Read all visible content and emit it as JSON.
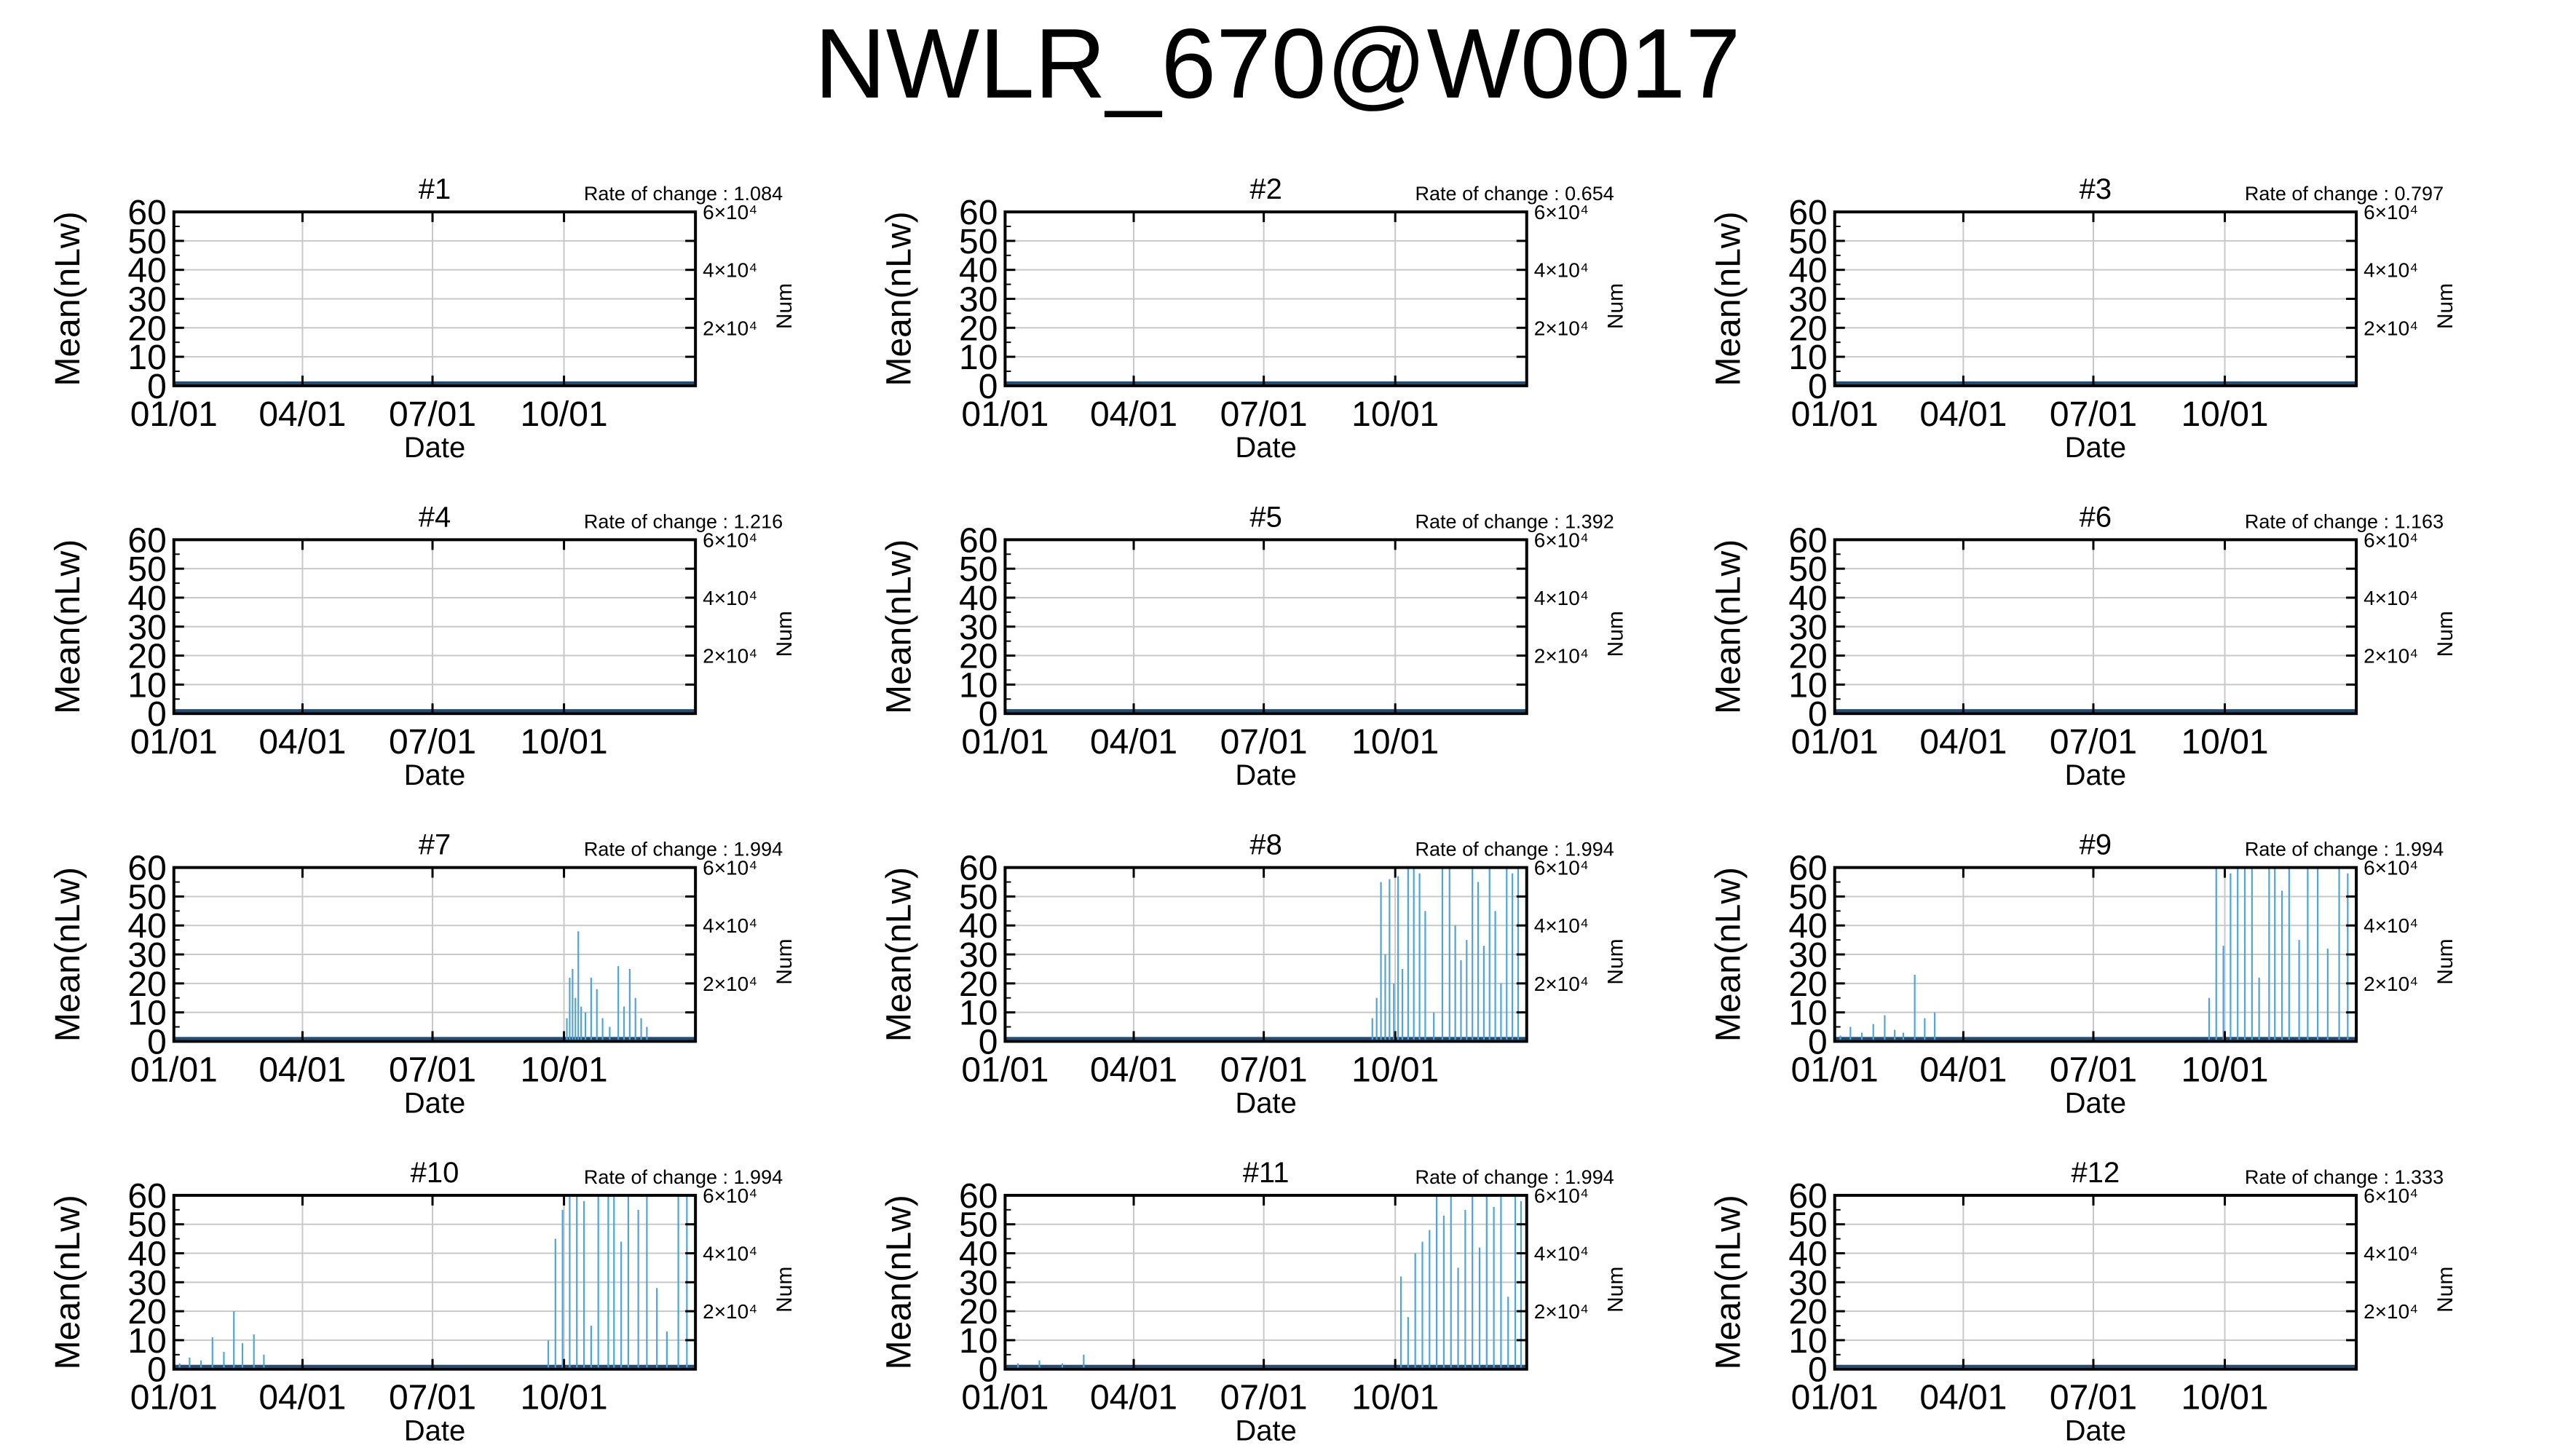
{
  "title": "NWLR_670@W0017",
  "chart_data": [
    {
      "type": "line",
      "title": "#1",
      "rate_label": "Rate of change : 1.084",
      "ylabel": "Mean(nLw)",
      "xlabel": "Date",
      "y2label": "Num",
      "ylim": [
        0,
        60
      ],
      "y_ticks": [
        0,
        10,
        20,
        30,
        40,
        50,
        60
      ],
      "y2_ticks": [
        {
          "value": 20000,
          "label": "2×10⁴"
        },
        {
          "value": 40000,
          "label": "4×10⁴"
        },
        {
          "value": 60000,
          "label": "6×10⁴"
        }
      ],
      "x_ticks": [
        "01/01",
        "04/01",
        "07/01",
        "10/01"
      ],
      "grid": true,
      "series": []
    },
    {
      "type": "line",
      "title": "#2",
      "rate_label": "Rate of change : 0.654",
      "ylabel": "Mean(nLw)",
      "xlabel": "Date",
      "y2label": "Num",
      "ylim": [
        0,
        60
      ],
      "y_ticks": [
        0,
        10,
        20,
        30,
        40,
        50,
        60
      ],
      "y2_ticks": [
        {
          "value": 20000,
          "label": "2×10⁴"
        },
        {
          "value": 40000,
          "label": "4×10⁴"
        },
        {
          "value": 60000,
          "label": "6×10⁴"
        }
      ],
      "x_ticks": [
        "01/01",
        "04/01",
        "07/01",
        "10/01"
      ],
      "grid": true,
      "series": []
    },
    {
      "type": "line",
      "title": "#3",
      "rate_label": "Rate of change : 0.797",
      "ylabel": "Mean(nLw)",
      "xlabel": "Date",
      "y2label": "Num",
      "ylim": [
        0,
        60
      ],
      "y_ticks": [
        0,
        10,
        20,
        30,
        40,
        50,
        60
      ],
      "y2_ticks": [
        {
          "value": 20000,
          "label": "2×10⁴"
        },
        {
          "value": 40000,
          "label": "4×10⁴"
        },
        {
          "value": 60000,
          "label": "6×10⁴"
        }
      ],
      "x_ticks": [
        "01/01",
        "04/01",
        "07/01",
        "10/01"
      ],
      "grid": true,
      "series": []
    },
    {
      "type": "line",
      "title": "#4",
      "rate_label": "Rate of change : 1.216",
      "ylabel": "Mean(nLw)",
      "xlabel": "Date",
      "y2label": "Num",
      "ylim": [
        0,
        60
      ],
      "y_ticks": [
        0,
        10,
        20,
        30,
        40,
        50,
        60
      ],
      "y2_ticks": [
        {
          "value": 20000,
          "label": "2×10⁴"
        },
        {
          "value": 40000,
          "label": "4×10⁴"
        },
        {
          "value": 60000,
          "label": "6×10⁴"
        }
      ],
      "x_ticks": [
        "01/01",
        "04/01",
        "07/01",
        "10/01"
      ],
      "grid": true,
      "series": []
    },
    {
      "type": "line",
      "title": "#5",
      "rate_label": "Rate of change : 1.392",
      "ylabel": "Mean(nLw)",
      "xlabel": "Date",
      "y2label": "Num",
      "ylim": [
        0,
        60
      ],
      "y_ticks": [
        0,
        10,
        20,
        30,
        40,
        50,
        60
      ],
      "y2_ticks": [
        {
          "value": 20000,
          "label": "2×10⁴"
        },
        {
          "value": 40000,
          "label": "4×10⁴"
        },
        {
          "value": 60000,
          "label": "6×10⁴"
        }
      ],
      "x_ticks": [
        "01/01",
        "04/01",
        "07/01",
        "10/01"
      ],
      "grid": true,
      "series": []
    },
    {
      "type": "line",
      "title": "#6",
      "rate_label": "Rate of change : 1.163",
      "ylabel": "Mean(nLw)",
      "xlabel": "Date",
      "y2label": "Num",
      "ylim": [
        0,
        60
      ],
      "y_ticks": [
        0,
        10,
        20,
        30,
        40,
        50,
        60
      ],
      "y2_ticks": [
        {
          "value": 20000,
          "label": "2×10⁴"
        },
        {
          "value": 40000,
          "label": "4×10⁴"
        },
        {
          "value": 60000,
          "label": "6×10⁴"
        }
      ],
      "x_ticks": [
        "01/01",
        "04/01",
        "07/01",
        "10/01"
      ],
      "grid": true,
      "series": []
    },
    {
      "type": "line",
      "title": "#7",
      "rate_label": "Rate of change : 1.994",
      "ylabel": "Mean(nLw)",
      "xlabel": "Date",
      "y2label": "Num",
      "ylim": [
        0,
        60
      ],
      "y_ticks": [
        0,
        10,
        20,
        30,
        40,
        50,
        60
      ],
      "y2_ticks": [
        {
          "value": 20000,
          "label": "2×10⁴"
        },
        {
          "value": 40000,
          "label": "4×10⁴"
        },
        {
          "value": 60000,
          "label": "6×10⁴"
        }
      ],
      "x_ticks": [
        "01/01",
        "04/01",
        "07/01",
        "10/01"
      ],
      "grid": true,
      "series": [
        {
          "color": "#4da6d8",
          "x": [
            "10/03",
            "10/05",
            "10/07",
            "10/09",
            "10/11",
            "10/13",
            "10/16",
            "10/20",
            "10/24",
            "10/28",
            "11/02",
            "11/08",
            "11/12",
            "11/16",
            "11/20",
            "11/24",
            "11/28"
          ],
          "values": [
            8,
            22,
            25,
            15,
            38,
            12,
            10,
            22,
            18,
            8,
            5,
            26,
            12,
            25,
            15,
            8,
            5
          ]
        }
      ]
    },
    {
      "type": "line",
      "title": "#8",
      "rate_label": "Rate of change : 1.994",
      "ylabel": "Mean(nLw)",
      "xlabel": "Date",
      "y2label": "Num",
      "ylim": [
        0,
        60
      ],
      "y_ticks": [
        0,
        10,
        20,
        30,
        40,
        50,
        60
      ],
      "y2_ticks": [
        {
          "value": 20000,
          "label": "2×10⁴"
        },
        {
          "value": 40000,
          "label": "4×10⁴"
        },
        {
          "value": 60000,
          "label": "6×10⁴"
        }
      ],
      "x_ticks": [
        "01/01",
        "04/01",
        "07/01",
        "10/01"
      ],
      "grid": true,
      "series": [
        {
          "color": "#4da6d8",
          "x": [
            "09/15",
            "09/18",
            "09/21",
            "09/24",
            "09/27",
            "09/30",
            "10/03",
            "10/06",
            "10/10",
            "10/14",
            "10/18",
            "10/22",
            "10/28",
            "11/03",
            "11/08",
            "11/12",
            "11/16",
            "11/20",
            "11/24",
            "11/28",
            "12/02",
            "12/06",
            "12/10",
            "12/14",
            "12/18",
            "12/22",
            "12/26"
          ],
          "values": [
            8,
            15,
            55,
            30,
            56,
            20,
            57,
            25,
            60,
            60,
            58,
            45,
            10,
            60,
            60,
            40,
            28,
            35,
            60,
            55,
            33,
            60,
            45,
            20,
            60,
            58,
            60
          ]
        }
      ]
    },
    {
      "type": "line",
      "title": "#9",
      "rate_label": "Rate of change : 1.994",
      "ylabel": "Mean(nLw)",
      "xlabel": "Date",
      "y2label": "Num",
      "ylim": [
        0,
        60
      ],
      "y_ticks": [
        0,
        10,
        20,
        30,
        40,
        50,
        60
      ],
      "y2_ticks": [
        {
          "value": 20000,
          "label": "2×10⁴"
        },
        {
          "value": 40000,
          "label": "4×10⁴"
        },
        {
          "value": 60000,
          "label": "6×10⁴"
        }
      ],
      "x_ticks": [
        "01/01",
        "04/01",
        "07/01",
        "10/01"
      ],
      "grid": true,
      "series": [
        {
          "color": "#4da6d8",
          "x": [
            "01/05",
            "01/12",
            "01/20",
            "01/28",
            "02/05",
            "02/12",
            "02/18",
            "02/26",
            "03/05",
            "03/12",
            "09/20",
            "09/25",
            "09/30",
            "10/05",
            "10/10",
            "10/15",
            "10/20",
            "10/25",
            "11/01",
            "11/05",
            "11/10",
            "11/15",
            "11/22",
            "11/28",
            "12/05",
            "12/12",
            "12/20",
            "12/26"
          ],
          "values": [
            2,
            5,
            3,
            6,
            9,
            4,
            3,
            23,
            8,
            10,
            15,
            60,
            33,
            58,
            60,
            60,
            60,
            22,
            60,
            60,
            52,
            60,
            35,
            60,
            60,
            32,
            60,
            58
          ]
        }
      ]
    },
    {
      "type": "line",
      "title": "#10",
      "rate_label": "Rate of change : 1.994",
      "ylabel": "Mean(nLw)",
      "xlabel": "Date",
      "y2label": "Num",
      "ylim": [
        0,
        60
      ],
      "y_ticks": [
        0,
        10,
        20,
        30,
        40,
        50,
        60
      ],
      "y2_ticks": [
        {
          "value": 20000,
          "label": "2×10⁴"
        },
        {
          "value": 40000,
          "label": "4×10⁴"
        },
        {
          "value": 60000,
          "label": "6×10⁴"
        }
      ],
      "x_ticks": [
        "01/01",
        "04/01",
        "07/01",
        "10/01"
      ],
      "grid": true,
      "series": [
        {
          "color": "#4da6d8",
          "x": [
            "01/05",
            "01/12",
            "01/20",
            "01/28",
            "02/05",
            "02/12",
            "02/18",
            "02/26",
            "03/05",
            "09/20",
            "09/25",
            "09/30",
            "10/05",
            "10/10",
            "10/15",
            "10/20",
            "10/25",
            "11/01",
            "11/05",
            "11/10",
            "11/15",
            "11/22",
            "11/28",
            "12/05",
            "12/12",
            "12/20",
            "12/26"
          ],
          "values": [
            2,
            4,
            3,
            11,
            6,
            20,
            9,
            12,
            5,
            10,
            45,
            55,
            60,
            60,
            58,
            15,
            60,
            60,
            60,
            44,
            60,
            55,
            60,
            28,
            13,
            60,
            60
          ]
        }
      ]
    },
    {
      "type": "line",
      "title": "#11",
      "rate_label": "Rate of change : 1.994",
      "ylabel": "Mean(nLw)",
      "xlabel": "Date",
      "y2label": "Num",
      "ylim": [
        0,
        60
      ],
      "y_ticks": [
        0,
        10,
        20,
        30,
        40,
        50,
        60
      ],
      "y2_ticks": [
        {
          "value": 20000,
          "label": "2×10⁴"
        },
        {
          "value": 40000,
          "label": "4×10⁴"
        },
        {
          "value": 60000,
          "label": "6×10⁴"
        }
      ],
      "x_ticks": [
        "01/01",
        "04/01",
        "07/01",
        "10/01"
      ],
      "grid": true,
      "series": [
        {
          "color": "#4da6d8",
          "x": [
            "01/10",
            "01/25",
            "02/10",
            "02/25",
            "10/05",
            "10/10",
            "10/15",
            "10/20",
            "10/25",
            "10/30",
            "11/04",
            "11/09",
            "11/14",
            "11/19",
            "11/24",
            "11/29",
            "12/04",
            "12/09",
            "12/14",
            "12/19",
            "12/24",
            "12/28"
          ],
          "values": [
            2,
            3,
            2,
            5,
            32,
            18,
            40,
            44,
            48,
            60,
            53,
            60,
            35,
            55,
            60,
            42,
            60,
            56,
            60,
            25,
            60,
            58
          ]
        }
      ]
    },
    {
      "type": "line",
      "title": "#12",
      "rate_label": "Rate of change : 1.333",
      "ylabel": "Mean(nLw)",
      "xlabel": "Date",
      "y2label": "Num",
      "ylim": [
        0,
        60
      ],
      "y_ticks": [
        0,
        10,
        20,
        30,
        40,
        50,
        60
      ],
      "y2_ticks": [
        {
          "value": 20000,
          "label": "2×10⁴"
        },
        {
          "value": 40000,
          "label": "4×10⁴"
        },
        {
          "value": 60000,
          "label": "6×10⁴"
        }
      ],
      "x_ticks": [
        "01/01",
        "04/01",
        "07/01",
        "10/01"
      ],
      "grid": true,
      "series": []
    }
  ]
}
